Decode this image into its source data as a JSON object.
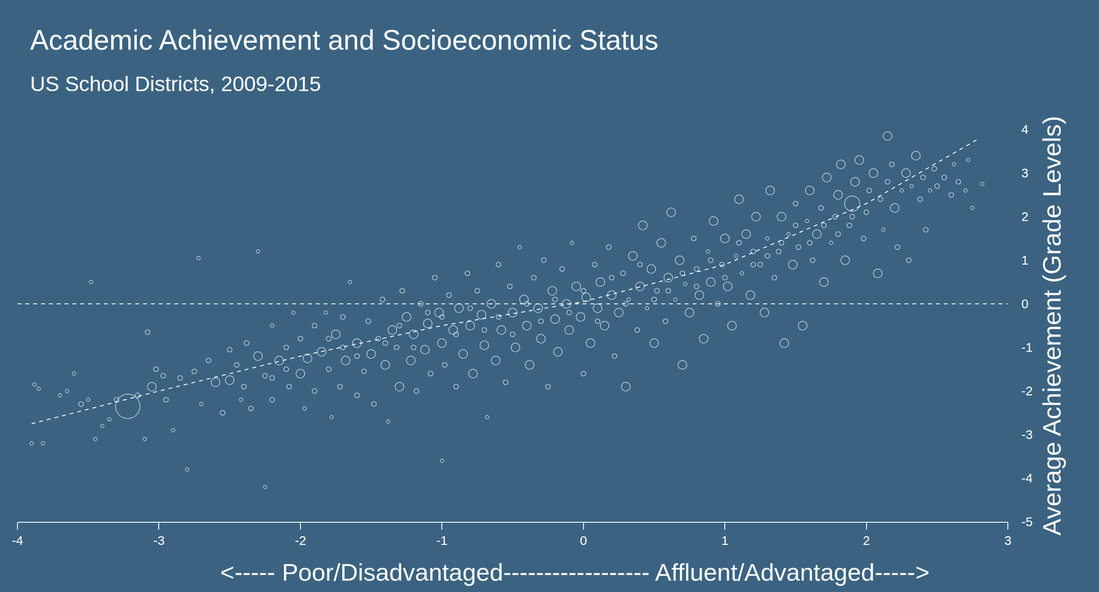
{
  "chart_data": {
    "type": "scatter",
    "title": "Academic Achievement and Socioeconomic Status",
    "subtitle": "US School Districts, 2009-2015",
    "x_label": "<----- Poor/Disadvantaged------------------ Affluent/Advantaged----->",
    "y_label": "Average Achievement (Grade Levels)",
    "color": "#ffffff",
    "marker": "open circle",
    "grid": false,
    "xlim": [
      -4,
      3
    ],
    "ylim": [
      -5,
      4
    ],
    "xticks": [
      -4,
      -3,
      -2,
      -1,
      0,
      1,
      2,
      3
    ],
    "yticks": [
      -5,
      -4,
      -3,
      -2,
      -1,
      0,
      1,
      2,
      3,
      4
    ],
    "x": [
      -3.88,
      -3.85,
      -3.9,
      -3.82,
      -3.7,
      -3.65,
      -3.6,
      -3.55,
      -3.5,
      -3.45,
      -3.48,
      -3.4,
      -3.35,
      -3.3,
      -3.22,
      -3.15,
      -3.1,
      -3.05,
      -3.02,
      -2.97,
      -3.08,
      -2.95,
      -2.9,
      -2.85,
      -2.8,
      -2.72,
      -2.75,
      -2.7,
      -2.65,
      -2.6,
      -2.55,
      -2.5,
      -2.5,
      -2.45,
      -2.42,
      -2.38,
      -2.35,
      -2.3,
      -2.3,
      -2.25,
      -2.25,
      -2.2,
      -2.2,
      -2.15,
      -2.1,
      -2.08,
      -2.05,
      -2.0,
      -2.0,
      -1.97,
      -1.95,
      -1.9,
      -1.9,
      -1.85,
      -1.82,
      -1.8,
      -1.78,
      -1.75,
      -1.72,
      -1.7,
      -1.68,
      -1.65,
      -1.6,
      -1.6,
      -1.55,
      -1.52,
      -1.5,
      -1.48,
      -1.45,
      -1.42,
      -1.4,
      -1.38,
      -1.35,
      -1.32,
      -1.3,
      -1.28,
      -1.25,
      -1.22,
      -1.2,
      -1.18,
      -1.15,
      -1.12,
      -1.1,
      -1.08,
      -1.05,
      -1.02,
      -1.0,
      -1.0,
      -0.98,
      -0.95,
      -0.92,
      -0.9,
      -0.88,
      -0.85,
      -0.82,
      -0.8,
      -0.78,
      -0.75,
      -0.72,
      -0.7,
      -0.68,
      -0.65,
      -0.62,
      -0.6,
      -0.58,
      -0.55,
      -0.52,
      -0.5,
      -0.48,
      -0.45,
      -0.42,
      -0.4,
      -0.38,
      -0.35,
      -0.32,
      -0.3,
      -0.28,
      -0.25,
      -0.22,
      -0.2,
      -0.18,
      -0.15,
      -0.12,
      -0.1,
      -0.08,
      -0.05,
      -0.02,
      0.0,
      0.02,
      0.05,
      0.08,
      0.1,
      0.12,
      0.15,
      0.18,
      0.2,
      0.22,
      0.25,
      0.28,
      0.3,
      0.32,
      0.35,
      0.38,
      0.4,
      0.42,
      0.45,
      0.48,
      0.5,
      0.52,
      0.55,
      0.58,
      0.6,
      0.62,
      0.65,
      0.68,
      0.7,
      0.72,
      0.75,
      0.78,
      0.8,
      0.82,
      0.85,
      0.88,
      0.9,
      0.92,
      0.95,
      0.98,
      1.0,
      1.02,
      1.05,
      1.08,
      1.1,
      1.12,
      1.15,
      1.18,
      1.2,
      1.22,
      1.25,
      1.28,
      1.3,
      1.32,
      1.35,
      1.38,
      1.4,
      1.42,
      1.45,
      1.48,
      1.5,
      1.52,
      1.55,
      1.58,
      1.6,
      1.62,
      1.65,
      1.68,
      1.7,
      1.72,
      1.75,
      1.78,
      1.8,
      1.82,
      1.85,
      1.88,
      1.9,
      1.92,
      1.95,
      1.98,
      2.0,
      2.02,
      2.05,
      2.08,
      2.1,
      2.12,
      2.15,
      2.15,
      2.18,
      2.2,
      2.22,
      2.25,
      2.28,
      2.3,
      2.32,
      2.35,
      2.38,
      2.4,
      2.42,
      2.45,
      2.48,
      2.5,
      2.55,
      2.6,
      2.62,
      2.65,
      2.7,
      2.72,
      2.75,
      2.82,
      -1.0,
      -0.9,
      -0.8,
      -0.7,
      -0.6,
      -0.5,
      -0.4,
      -0.3,
      -0.2,
      -0.1,
      0.0,
      0.1,
      0.2,
      0.3,
      0.4,
      0.5,
      0.6,
      0.7,
      0.8,
      0.9,
      1.0,
      1.1,
      1.2,
      1.3,
      1.4,
      1.5,
      1.6,
      1.7,
      1.8,
      1.9,
      -1.3,
      -1.2,
      -1.1,
      -1.4,
      -1.6,
      -1.7,
      -1.8,
      -2.1,
      -2.2,
      -2.4
    ],
    "y": [
      -1.85,
      -1.95,
      -3.2,
      -3.2,
      -2.1,
      -2.0,
      -1.6,
      -2.3,
      -2.2,
      -3.1,
      0.5,
      -2.8,
      -2.65,
      -2.2,
      -2.35,
      -2.1,
      -3.1,
      -1.9,
      -1.5,
      -1.65,
      -0.65,
      -2.2,
      -2.9,
      -1.7,
      -3.8,
      1.05,
      -1.55,
      -2.3,
      -1.3,
      -1.8,
      -2.5,
      -1.05,
      -1.75,
      -1.4,
      -2.2,
      -0.9,
      -2.4,
      1.2,
      -1.2,
      -4.2,
      -1.65,
      -0.5,
      -2.2,
      -1.3,
      -1.0,
      -1.9,
      -0.2,
      -0.8,
      -1.6,
      -2.4,
      -1.25,
      -0.5,
      -2.0,
      -1.1,
      -0.2,
      -1.5,
      -2.6,
      -0.7,
      -1.9,
      -0.3,
      -1.3,
      0.5,
      -0.9,
      -2.1,
      -1.55,
      -0.4,
      -1.15,
      -2.3,
      -0.8,
      0.1,
      -1.4,
      -2.7,
      -0.6,
      -1.0,
      -1.9,
      0.3,
      -0.3,
      -1.3,
      -0.7,
      -2.0,
      0.0,
      -1.05,
      -0.45,
      -1.6,
      0.6,
      -0.2,
      -0.9,
      -3.6,
      -1.4,
      0.2,
      -0.6,
      -1.9,
      -0.1,
      -1.15,
      0.7,
      -0.5,
      -1.6,
      0.3,
      -0.25,
      -0.95,
      -2.6,
      0.0,
      -1.3,
      0.9,
      -0.6,
      -1.8,
      0.4,
      -0.2,
      -1.0,
      1.3,
      0.1,
      -0.5,
      -1.4,
      0.6,
      -0.1,
      -0.8,
      1.0,
      -1.9,
      0.3,
      -0.35,
      -1.1,
      0.8,
      0.0,
      -0.6,
      1.4,
      0.4,
      -0.3,
      -1.6,
      0.15,
      -0.9,
      0.9,
      -0.1,
      0.5,
      -0.5,
      1.3,
      0.2,
      -1.2,
      -0.2,
      0.7,
      -1.9,
      0.1,
      1.1,
      -0.6,
      0.4,
      1.8,
      -0.1,
      0.8,
      -0.9,
      0.3,
      1.4,
      -0.4,
      0.6,
      2.1,
      0.1,
      1.0,
      -1.4,
      0.45,
      -0.2,
      1.5,
      0.8,
      0.2,
      -0.8,
      1.2,
      0.5,
      1.9,
      0.0,
      0.9,
      1.5,
      0.4,
      -0.5,
      1.1,
      2.4,
      0.7,
      1.6,
      0.2,
      1.2,
      2.0,
      0.9,
      -0.2,
      1.5,
      2.6,
      0.6,
      1.2,
      2.0,
      -0.9,
      1.6,
      0.9,
      2.3,
      1.3,
      -0.5,
      1.9,
      2.6,
      1.0,
      1.6,
      2.2,
      0.5,
      2.9,
      1.4,
      2.0,
      2.5,
      3.2,
      1.0,
      1.8,
      2.3,
      2.8,
      3.3,
      1.5,
      2.1,
      2.6,
      3.0,
      0.7,
      2.4,
      1.7,
      3.85,
      2.8,
      3.2,
      2.2,
      1.3,
      2.6,
      3.0,
      1.0,
      2.7,
      3.4,
      2.4,
      2.9,
      1.7,
      2.6,
      3.1,
      2.7,
      2.9,
      2.5,
      3.2,
      2.8,
      2.6,
      3.3,
      2.2,
      2.75,
      -0.3,
      -0.7,
      -0.1,
      -0.6,
      -0.3,
      -0.7,
      0.0,
      -0.4,
      0.1,
      -0.2,
      0.3,
      -0.4,
      0.6,
      0.0,
      0.9,
      0.1,
      0.3,
      0.7,
      0.4,
      1.0,
      0.6,
      1.4,
      0.9,
      1.1,
      1.4,
      1.8,
      1.4,
      1.8,
      1.6,
      2.0,
      -0.5,
      -1.0,
      -0.2,
      -0.9,
      -1.2,
      -1.0,
      -0.8,
      -1.5,
      -1.7,
      -1.9
    ],
    "sizes": [
      1,
      1,
      1,
      1,
      1,
      1,
      1,
      2,
      1,
      1,
      1,
      1,
      1,
      2,
      5,
      2,
      1,
      3,
      2,
      2,
      2,
      2,
      1,
      2,
      1,
      1,
      2,
      1,
      2,
      3,
      2,
      2,
      3,
      2,
      1,
      2,
      2,
      1,
      3,
      1,
      2,
      1,
      2,
      3,
      2,
      2,
      1,
      2,
      3,
      1,
      3,
      2,
      2,
      3,
      1,
      2,
      1,
      3,
      2,
      2,
      3,
      1,
      3,
      2,
      2,
      2,
      3,
      2,
      2,
      2,
      3,
      1,
      3,
      2,
      3,
      2,
      3,
      3,
      3,
      2,
      2,
      3,
      3,
      2,
      2,
      3,
      3,
      1,
      2,
      2,
      3,
      2,
      3,
      3,
      2,
      3,
      3,
      2,
      3,
      3,
      1,
      3,
      3,
      2,
      3,
      2,
      2,
      3,
      3,
      1,
      3,
      3,
      3,
      2,
      3,
      3,
      2,
      2,
      3,
      3,
      3,
      2,
      3,
      3,
      1,
      3,
      3,
      2,
      3,
      3,
      2,
      3,
      3,
      3,
      2,
      3,
      2,
      3,
      2,
      3,
      1,
      3,
      2,
      3,
      3,
      1,
      3,
      3,
      2,
      3,
      2,
      3,
      3,
      1,
      3,
      3,
      1,
      3,
      2,
      2,
      3,
      3,
      1,
      3,
      3,
      2,
      2,
      3,
      3,
      3,
      1,
      3,
      1,
      3,
      3,
      2,
      3,
      2,
      3,
      1,
      3,
      2,
      2,
      3,
      3,
      1,
      3,
      2,
      2,
      3,
      1,
      3,
      2,
      3,
      2,
      3,
      3,
      1,
      2,
      3,
      3,
      3,
      2,
      4,
      3,
      3,
      2,
      2,
      2,
      3,
      3,
      2,
      1,
      3,
      2,
      2,
      3,
      2,
      1,
      3,
      2,
      1,
      3,
      2,
      2,
      2,
      1,
      2,
      2,
      2,
      2,
      1,
      2,
      1,
      1,
      1,
      1,
      2,
      2,
      2,
      2,
      2,
      2,
      2,
      2,
      2,
      2,
      2,
      2,
      2,
      2,
      2,
      2,
      2,
      2,
      2,
      2,
      2,
      2,
      2,
      2,
      2,
      2,
      2,
      2,
      2,
      2,
      2,
      2,
      2,
      2,
      2,
      2,
      2,
      2,
      2,
      2
    ],
    "reference_lines": [
      {
        "x": [
          -4,
          3
        ],
        "y": [
          0,
          0
        ],
        "line_style": "dashed"
      },
      {
        "x": [
          -3.9,
          -3.0,
          -2.0,
          -1.0,
          0.0,
          1.0,
          2.0,
          2.8
        ],
        "y": [
          -2.75,
          -2.0,
          -1.2,
          -0.5,
          0.05,
          0.9,
          2.3,
          3.8
        ],
        "line_style": "dashed"
      }
    ]
  }
}
